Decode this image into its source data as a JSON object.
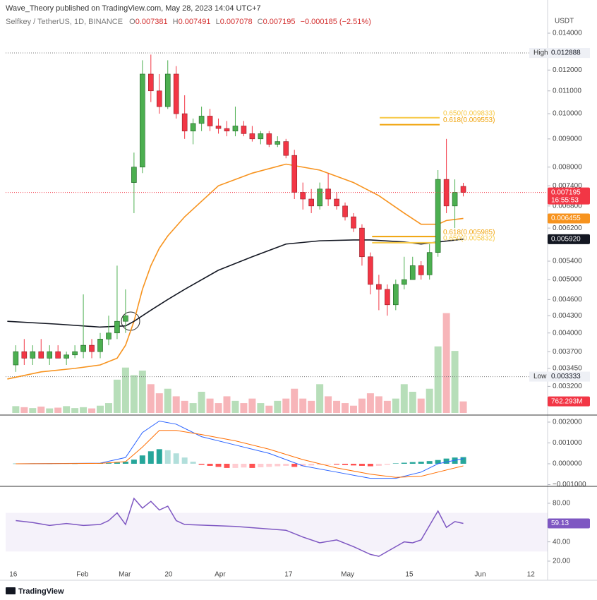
{
  "header": {
    "publisher": "Wave_Theory published on TradingView.com, May 28, 2023 14:04 UTC+7",
    "symbol": "Selfkey / TetherUS, 1D, BINANCE",
    "ohlc_letters": [
      "O",
      "H",
      "L",
      "C"
    ],
    "change": "−0.000185 (−2.51%)",
    "currency": "USDT",
    "logo": "TradingView"
  },
  "chart_data": [
    {
      "type": "candlestick",
      "log": true,
      "grid": false,
      "xlim": [
        -1.2,
        62.9
      ],
      "ylim": [
        0.002864,
        0.01516
      ],
      "xticks": [
        {
          "value": -0.3,
          "label": "16"
        },
        {
          "value": 7.9,
          "label": "Feb"
        },
        {
          "value": 12.9,
          "label": "Mar"
        },
        {
          "value": 18.1,
          "label": "20"
        },
        {
          "value": 24.2,
          "label": "Apr"
        },
        {
          "value": 32.3,
          "label": "17"
        },
        {
          "value": 39.3,
          "label": "May"
        },
        {
          "value": 46.6,
          "label": "15"
        },
        {
          "value": 55,
          "label": "Jun"
        },
        {
          "value": 61,
          "label": "12"
        }
      ],
      "yticks": [
        {
          "value": 0.014,
          "label": "0.014000"
        },
        {
          "value": 0.012,
          "label": "0.012000"
        },
        {
          "value": 0.011,
          "label": "0.011000"
        },
        {
          "value": 0.01,
          "label": "0.010000"
        },
        {
          "value": 0.009,
          "label": "0.009000"
        },
        {
          "value": 0.008,
          "label": "0.008000"
        },
        {
          "value": 0.0074,
          "label": "0.007400"
        },
        {
          "value": 0.0068,
          "label": "0.006800"
        },
        {
          "value": 0.0062,
          "label": "0.006200"
        },
        {
          "value": 0.0054,
          "label": "0.005400"
        },
        {
          "value": 0.005,
          "label": "0.005000"
        },
        {
          "value": 0.0046,
          "label": "0.004600"
        },
        {
          "value": 0.0043,
          "label": "0.004300"
        },
        {
          "value": 0.004,
          "label": "0.004000"
        },
        {
          "value": 0.0037,
          "label": "0.003700"
        },
        {
          "value": 0.00345,
          "label": "0.003450"
        },
        {
          "value": 0.0032,
          "label": "0.003200"
        }
      ],
      "up_color": "#4caf50",
      "down_color": "#f23645",
      "open": [
        0.0035,
        0.0037,
        0.0036,
        0.0037,
        0.0036,
        0.0037,
        0.0036,
        0.00365,
        0.0037,
        0.0038,
        0.0037,
        0.0039,
        0.004,
        0.0042,
        0.0075,
        0.008,
        0.0118,
        0.011,
        0.0103,
        0.0118,
        0.01,
        0.0093,
        0.0096,
        0.0099,
        0.0095,
        0.0094,
        0.0093,
        0.0095,
        0.0092,
        0.009,
        0.0092,
        0.0088,
        0.0089,
        0.0084,
        0.0072,
        0.007,
        0.0068,
        0.0073,
        0.007,
        0.0068,
        0.0065,
        0.0062,
        0.0055,
        0.0049,
        0.0048,
        0.0045,
        0.0049,
        0.005,
        0.0053,
        0.0051,
        0.0056,
        0.0076,
        0.0068,
        0.007381
      ],
      "high": [
        0.0038,
        0.0039,
        0.0038,
        0.0039,
        0.0038,
        0.0038,
        0.0037,
        0.0038,
        0.0047,
        0.0039,
        0.004,
        0.0043,
        0.0053,
        0.0048,
        0.0085,
        0.0125,
        0.0128,
        0.0118,
        0.0125,
        0.0122,
        0.0108,
        0.0098,
        0.0103,
        0.0102,
        0.0098,
        0.0097,
        0.0103,
        0.0097,
        0.0095,
        0.0093,
        0.0093,
        0.0091,
        0.009,
        0.0086,
        0.0075,
        0.0073,
        0.0075,
        0.0078,
        0.0072,
        0.0069,
        0.0066,
        0.0063,
        0.0056,
        0.0051,
        0.0049,
        0.005,
        0.0055,
        0.0055,
        0.0054,
        0.0058,
        0.0079,
        0.009,
        0.0076,
        0.007491
      ],
      "low": [
        0.0034,
        0.0035,
        0.0035,
        0.0036,
        0.0035,
        0.0036,
        0.0035,
        0.0036,
        0.0036,
        0.0036,
        0.0036,
        0.0038,
        0.0039,
        0.004,
        0.0066,
        0.0078,
        0.0105,
        0.01,
        0.0102,
        0.0098,
        0.009,
        0.0088,
        0.0093,
        0.0093,
        0.0092,
        0.0091,
        0.0091,
        0.0091,
        0.0089,
        0.0088,
        0.0087,
        0.0087,
        0.0083,
        0.007,
        0.0067,
        0.0066,
        0.0067,
        0.0068,
        0.0067,
        0.0064,
        0.0061,
        0.0053,
        0.0047,
        0.0044,
        0.0043,
        0.0044,
        0.0048,
        0.005,
        0.005,
        0.005,
        0.0055,
        0.0066,
        0.0062,
        0.007078
      ],
      "close": [
        0.0037,
        0.0036,
        0.0037,
        0.0036,
        0.0037,
        0.0036,
        0.00365,
        0.0037,
        0.0038,
        0.0037,
        0.0039,
        0.004,
        0.0042,
        0.0043,
        0.008,
        0.0118,
        0.011,
        0.0103,
        0.0118,
        0.01,
        0.0093,
        0.0096,
        0.0099,
        0.0095,
        0.0094,
        0.0093,
        0.0095,
        0.0092,
        0.009,
        0.0092,
        0.0088,
        0.0089,
        0.0084,
        0.0072,
        0.007,
        0.0068,
        0.0073,
        0.007,
        0.0068,
        0.0065,
        0.0062,
        0.0055,
        0.0049,
        0.0048,
        0.0045,
        0.0049,
        0.005,
        0.0053,
        0.0051,
        0.0056,
        0.0076,
        0.0068,
        0.0072,
        0.007195
      ],
      "countdown": "16:55:53",
      "overlays": [
        {
          "x": [
            -1,
            3,
            7,
            10,
            12,
            13,
            14,
            15,
            16,
            17,
            18,
            20,
            24,
            28,
            32,
            36,
            40,
            43,
            46,
            48,
            50,
            51,
            53
          ],
          "values": [
            0.0033,
            0.0034,
            0.00345,
            0.0035,
            0.0036,
            0.0038,
            0.0042,
            0.0048,
            0.0053,
            0.0057,
            0.006,
            0.0065,
            0.0074,
            0.0078,
            0.0081,
            0.0079,
            0.0075,
            0.0071,
            0.0066,
            0.0063,
            0.0063,
            0.0064,
            0.006455
          ],
          "color": "#f7931e",
          "label_text": "#ffffff"
        },
        {
          "x": [
            -1,
            5,
            10,
            13,
            14,
            16,
            18,
            20,
            24,
            28,
            32,
            36,
            40,
            42,
            46,
            48,
            50,
            53
          ],
          "values": [
            0.0042,
            0.00415,
            0.0041,
            0.00412,
            0.0042,
            0.0044,
            0.0046,
            0.0048,
            0.0052,
            0.0055,
            0.0058,
            0.00588,
            0.0059,
            0.0059,
            0.00585,
            0.0058,
            0.00585,
            0.00592
          ],
          "value_labels": {
            "17": "0.005920"
          },
          "color": "#131722",
          "label_text": "#ffffff"
        }
      ],
      "levels": [
        {
          "label": "High",
          "value": 0.012888
        },
        {
          "label": "Low",
          "value": 0.003333
        }
      ],
      "fib": [
        {
          "label": "0.650(0.009833)",
          "value": 0.009833,
          "from": 43.1,
          "to": 50.2,
          "color": "#f7c948"
        },
        {
          "label": "0.618(0.009553)",
          "value": 0.009553,
          "from": 43.1,
          "to": 50.2,
          "color": "#f0a30a"
        },
        {
          "label": "0.618(0.005985)",
          "value": 0.005985,
          "from": 42.2,
          "to": 50.2,
          "color": "#f0a30a"
        },
        {
          "label": "0.650(0.005832)",
          "value": 0.005832,
          "from": 42.2,
          "to": 50.2,
          "color": "#f7c948"
        }
      ]
    },
    {
      "type": "bar",
      "ylim": [
        0,
        7000
      ],
      "up_color": "#a5d6a7",
      "down_color": "#f5a3a8",
      "values": [
        450,
        380,
        320,
        420,
        300,
        350,
        450,
        320,
        380,
        300,
        480,
        650,
        2200,
        3000,
        2500,
        2800,
        1900,
        1300,
        1600,
        1100,
        800,
        650,
        1400,
        950,
        650,
        1100,
        800,
        650,
        950,
        650,
        480,
        800,
        950,
        1600,
        950,
        800,
        1900,
        1100,
        800,
        650,
        480,
        950,
        1300,
        1100,
        800,
        950,
        1900,
        1400,
        950,
        1600,
        4400,
        6600,
        4100,
        762.293
      ],
      "value_labels": {
        "53": "762.293M"
      }
    },
    {
      "type": "macd",
      "ylim": [
        -0.00105,
        0.00227
      ],
      "yticks": [
        {
          "value": 0.002,
          "label": "0.002000"
        },
        {
          "value": 0.001,
          "label": "0.001000"
        },
        {
          "value": 0,
          "label": "0.000000"
        },
        {
          "value": -0.001,
          "label": "−0.001000"
        }
      ],
      "histogram": [
        1e-05,
        1e-05,
        2e-05,
        1e-05,
        1e-05,
        2e-05,
        1e-05,
        1e-05,
        3e-05,
        2e-05,
        2e-05,
        3e-05,
        6e-05,
        0.0001,
        0.0002,
        0.0004,
        0.0006,
        0.0007,
        0.00065,
        0.0005,
        0.0003,
        0.0001,
        -5e-05,
        -0.0001,
        -0.00015,
        -0.0002,
        -0.0002,
        -0.00018,
        -0.0002,
        -0.00017,
        -0.00015,
        -0.00012,
        -0.0001,
        -0.00015,
        -0.00012,
        -8e-05,
        -5e-05,
        -3e-05,
        -4e-05,
        -6e-05,
        -8e-05,
        -0.0001,
        -0.00012,
        -0.0001,
        -5e-05,
        2e-05,
        5e-05,
        8e-05,
        0.0001,
        0.00013,
        0.00018,
        0.00025,
        0.0003,
        0.00032
      ],
      "histogram_colors": [
        "#26a69a",
        "#b2dfdb",
        "#ffcdd2",
        "#ff5252"
      ],
      "series": [
        {
          "x": [
            0,
            10,
            13,
            15,
            17,
            19,
            22,
            26,
            30,
            34,
            38,
            42,
            45,
            48,
            50,
            53
          ],
          "values": [
            0,
            3e-05,
            0.0003,
            0.0015,
            0.00205,
            0.0019,
            0.0013,
            0.0009,
            0.0005,
            -0.0001,
            -0.0004,
            -0.0007,
            -0.0007,
            -0.0004,
            0,
            0.00025
          ],
          "color": "#2962ff"
        },
        {
          "x": [
            0,
            10,
            13,
            15,
            17,
            19,
            22,
            26,
            30,
            34,
            38,
            42,
            45,
            48,
            50,
            53
          ],
          "values": [
            0,
            2e-05,
            0.0001,
            0.0008,
            0.0016,
            0.0016,
            0.0014,
            0.0011,
            0.0007,
            0.0002,
            -0.0002,
            -0.0005,
            -0.00065,
            -0.0006,
            -0.0004,
            -0.0001
          ],
          "color": "#ff6d00"
        }
      ]
    },
    {
      "type": "rsi",
      "ylim": [
        16.3,
        96.8
      ],
      "band": [
        30,
        70
      ],
      "color": "#7e57c2",
      "yticks": [
        {
          "value": 80,
          "label": "80.00"
        },
        {
          "value": 40,
          "label": "40.00"
        },
        {
          "value": 20,
          "label": "20.00"
        }
      ],
      "x": [
        0,
        2,
        4,
        6,
        8,
        10,
        11,
        12,
        13,
        14,
        15,
        16,
        17,
        18,
        19,
        20,
        23,
        26,
        29,
        32,
        34,
        36,
        38,
        40,
        42,
        43,
        44,
        46,
        47,
        48,
        50,
        51,
        52,
        53
      ],
      "values": [
        62,
        60,
        57,
        59,
        57,
        58,
        62,
        70,
        58,
        85,
        75,
        82,
        73,
        77,
        62,
        58,
        57,
        56,
        54,
        52,
        45,
        39,
        42,
        35,
        27,
        25,
        30,
        40,
        39,
        42,
        72,
        55,
        61,
        59.13
      ]
    }
  ]
}
